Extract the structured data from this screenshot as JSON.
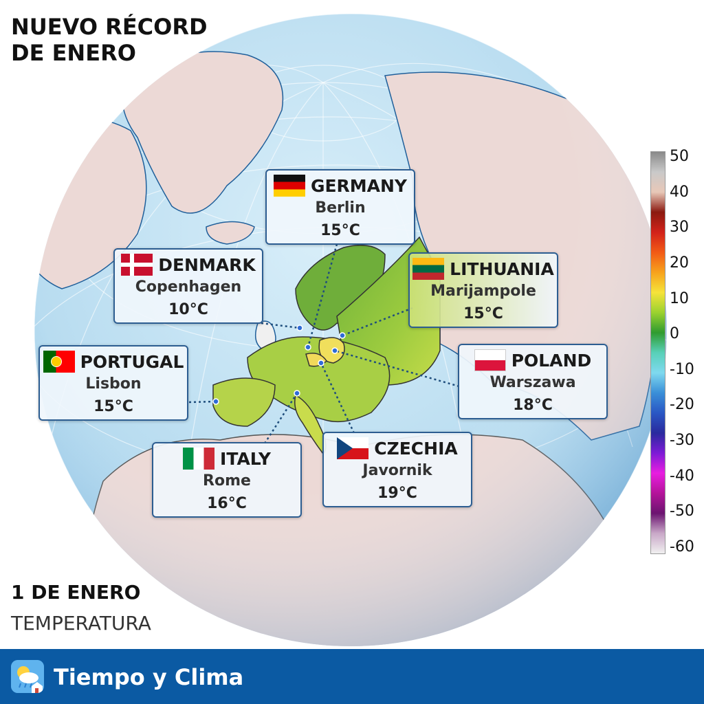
{
  "title": {
    "line1": "NUEVO RÉCORD",
    "line2": "DE ENERO"
  },
  "date_label": "1 DE ENERO",
  "variable_label": "TEMPERATURA",
  "brand": "Tiempo y Clima",
  "colors": {
    "ocean": "#bfe0f2",
    "land": "#ecd9d6",
    "warm_land": "#8cc63f",
    "hot_land": "#f0df5c",
    "footer": "#0b5aa3",
    "card_border": "#2c5d91"
  },
  "records": [
    {
      "country": "GERMANY",
      "city": "Berlin",
      "temp": "15°C",
      "flag": "germany-flag"
    },
    {
      "country": "DENMARK",
      "city": "Copenhagen",
      "temp": "10°C",
      "flag": "denmark-flag"
    },
    {
      "country": "LITHUANIA",
      "city": "Marijampole",
      "temp": "15°C",
      "flag": "lithuania-flag"
    },
    {
      "country": "PORTUGAL",
      "city": "Lisbon",
      "temp": "15°C",
      "flag": "portugal-flag"
    },
    {
      "country": "POLAND",
      "city": "Warszawa",
      "temp": "18°C",
      "flag": "poland-flag"
    },
    {
      "country": "ITALY",
      "city": "Rome",
      "temp": "16°C",
      "flag": "italy-flag"
    },
    {
      "country": "CZECHIA",
      "city": "Javornik",
      "temp": "19°C",
      "flag": "czechia-flag"
    }
  ],
  "legend": {
    "labels": [
      "50",
      "40",
      "30",
      "20",
      "10",
      "0",
      "-10",
      "-20",
      "-30",
      "-40",
      "-50",
      "-60"
    ],
    "colors_top_to_bottom": [
      "#8a8a8a",
      "#c9c9c9",
      "#e8c8b8",
      "#8b1a10",
      "#d2221a",
      "#f25a16",
      "#f7a21c",
      "#f6e33a",
      "#9bd22f",
      "#2f9b2f",
      "#58d0b8",
      "#7fd9ef",
      "#3a8fd8",
      "#2a57c4",
      "#2a2a9e",
      "#7d1bd6",
      "#e81ee0",
      "#b4149a",
      "#6b1470",
      "#c9a8c8",
      "#f0f0f0"
    ]
  }
}
